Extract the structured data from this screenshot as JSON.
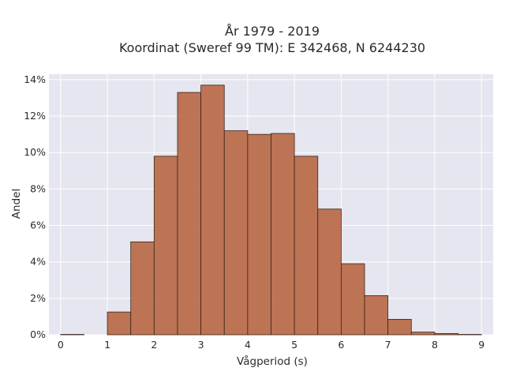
{
  "chart_data": {
    "type": "bar",
    "title_lines": [
      "År 1979 - 2019",
      "Koordinat (Sweref 99 TM): E 342468, N 6244230"
    ],
    "xlabel": "Vågperiod (s)",
    "ylabel": "Andel",
    "bin_width": 0.5,
    "bin_starts": [
      0,
      0.5,
      1,
      1.5,
      2,
      2.5,
      3,
      3.5,
      4,
      4.5,
      5,
      5.5,
      6,
      6.5,
      7,
      7.5,
      8,
      8.5
    ],
    "values": [
      0.02,
      0,
      1.25,
      5.1,
      9.8,
      13.3,
      13.7,
      11.2,
      11.0,
      11.05,
      9.8,
      6.9,
      3.9,
      2.15,
      0.85,
      0.15,
      0.07,
      0.02
    ],
    "xticks": [
      0,
      1,
      2,
      3,
      4,
      5,
      6,
      7,
      8,
      9
    ],
    "yticks": [
      0,
      2,
      4,
      6,
      8,
      10,
      12,
      14
    ],
    "y_tick_suffix": "%",
    "xlim": [
      -0.25,
      9.25
    ],
    "ylim": [
      0,
      14.3
    ],
    "grid": true,
    "colors": {
      "bar_fill": "#b86a48",
      "bar_edge": "#3b2418",
      "plot_background": "#e5e6ef",
      "grid": "#ffffff"
    }
  }
}
